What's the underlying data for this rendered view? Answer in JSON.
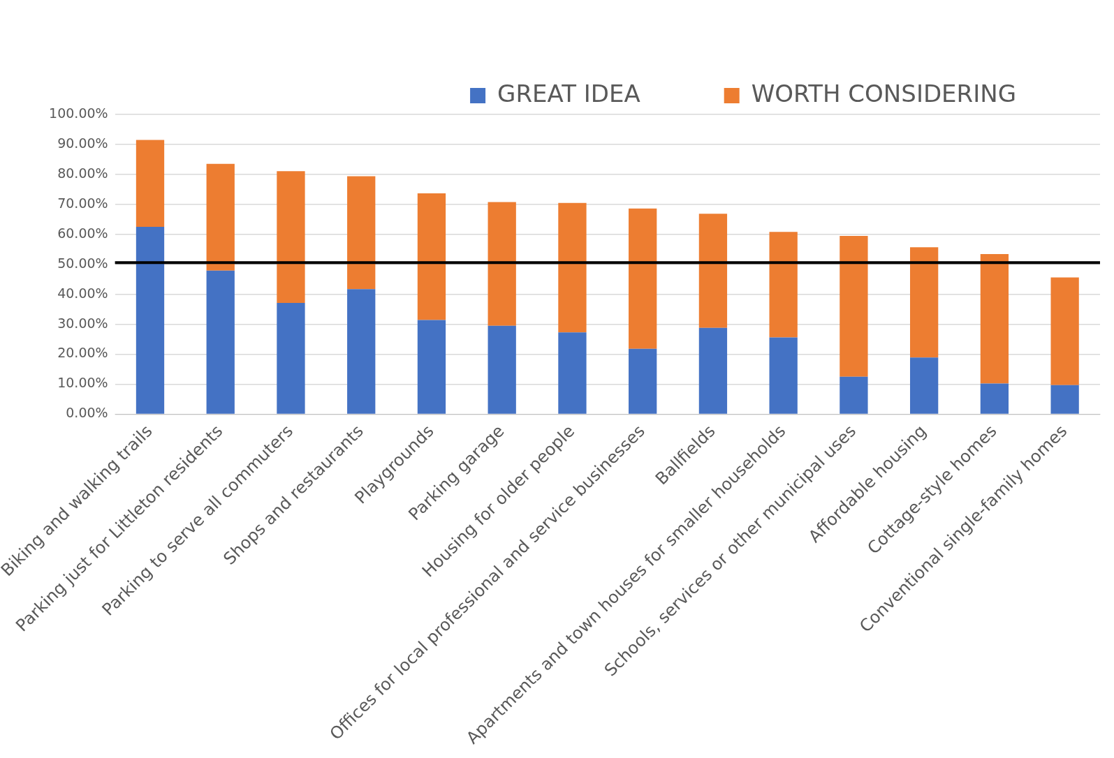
{
  "chart_data": {
    "type": "bar",
    "stacked": true,
    "categories": [
      "Biking and walking trails",
      "Parking just for Littleton residents",
      "Parking to serve all commuters",
      "Shops and restaurants",
      "Playgrounds",
      "Parking garage",
      "Housing for older people",
      "Offices for local professional and service businesses",
      "Ballfields",
      "Apartments and town houses for smaller households",
      "Schools, services or other municipal uses",
      "Affordable housing",
      "Cottage-style homes",
      "Conventional single-family homes"
    ],
    "series": [
      {
        "name": "GREAT IDEA",
        "color": "#4472c4",
        "values": [
          62.5,
          47.9,
          37.1,
          41.7,
          31.4,
          29.5,
          27.3,
          21.8,
          28.8,
          25.6,
          12.5,
          18.9,
          10.2,
          9.7
        ]
      },
      {
        "name": "WORTH CONSIDERING",
        "color": "#ed7d31",
        "values": [
          29.0,
          35.6,
          44.0,
          37.7,
          42.3,
          41.3,
          43.2,
          46.8,
          38.1,
          35.2,
          47.0,
          36.8,
          43.2,
          35.9
        ]
      }
    ],
    "ylim": [
      0,
      100
    ],
    "yticks": [
      {
        "value": 0,
        "label": "0.00%"
      },
      {
        "value": 10,
        "label": "10.00%"
      },
      {
        "value": 20,
        "label": "20.00%"
      },
      {
        "value": 30,
        "label": "30.00%"
      },
      {
        "value": 40,
        "label": "40.00%"
      },
      {
        "value": 50,
        "label": "50.00%"
      },
      {
        "value": 60,
        "label": "60.00%"
      },
      {
        "value": 70,
        "label": "70.00%"
      },
      {
        "value": 80,
        "label": "80.00%"
      },
      {
        "value": 90,
        "label": "90.00%"
      },
      {
        "value": 100,
        "label": "100.00%"
      }
    ],
    "ref_lines": [
      {
        "axis": "y",
        "value": 50.6,
        "color": "#000000"
      }
    ],
    "grid": "y",
    "legend": "top right"
  }
}
